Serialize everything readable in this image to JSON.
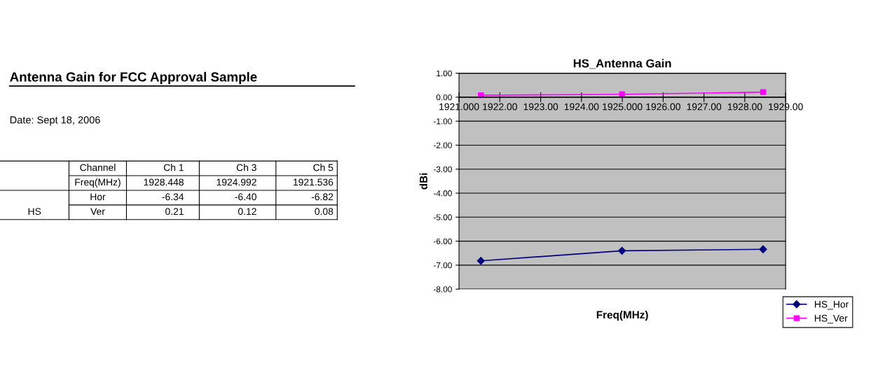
{
  "chart_data": [
    {
      "type": "other",
      "title": "Antenna Gain for FCC Approval Sample",
      "annotations": [
        "Date: Sept 18, 2006",
        "HS",
        "Channel",
        "Ch 1",
        "Ch 3",
        "Ch 5",
        "Freq(MHz)",
        "1928.448",
        "1924.992",
        "1921.536",
        "Hor",
        "-6.34",
        "-6.40",
        "-6.82",
        "Ver",
        "0.21",
        "0.12",
        "0.08"
      ]
    },
    {
      "type": "line",
      "title": "HS_Antenna Gain",
      "xlabel": "Freq(MHz)",
      "ylabel": "dBi",
      "xlim": [
        1921,
        1929
      ],
      "ylim": [
        -8,
        1
      ],
      "xticks": [
        {
          "value": 1921,
          "label": "1921.000"
        },
        {
          "value": 1922,
          "label": "1922.00"
        },
        {
          "value": 1923,
          "label": "1923.00"
        },
        {
          "value": 1924,
          "label": "1924.00"
        },
        {
          "value": 1925,
          "label": "1925.000"
        },
        {
          "value": 1926,
          "label": "1926.00"
        },
        {
          "value": 1927,
          "label": "1927.00"
        },
        {
          "value": 1928,
          "label": "1928.00"
        },
        {
          "value": 1929,
          "label": "1929.00"
        }
      ],
      "yticks": [
        {
          "value": -8,
          "label": "-8.00"
        },
        {
          "value": -7,
          "label": "-7.00"
        },
        {
          "value": -6,
          "label": "-6.00"
        },
        {
          "value": -5,
          "label": "-5.00"
        },
        {
          "value": -4,
          "label": "-4.00"
        },
        {
          "value": -3,
          "label": "-3.00"
        },
        {
          "value": -2,
          "label": "-2.00"
        },
        {
          "value": -1,
          "label": "-1.00"
        },
        {
          "value": 0,
          "label": "0.00"
        },
        {
          "value": 1,
          "label": "1.00"
        }
      ],
      "grid": "y",
      "legend": "bottom right",
      "series": [
        {
          "name": "HS_Hor",
          "color": "#000080",
          "marker": "diamond",
          "x": [
            1921.536,
            1924.992,
            1928.448
          ],
          "values": [
            -6.82,
            -6.4,
            -6.34
          ]
        },
        {
          "name": "HS_Ver",
          "color": "#ff00ff",
          "marker": "square",
          "x": [
            1921.536,
            1924.992,
            1928.448
          ],
          "values": [
            0.08,
            0.12,
            0.21
          ]
        }
      ]
    }
  ]
}
